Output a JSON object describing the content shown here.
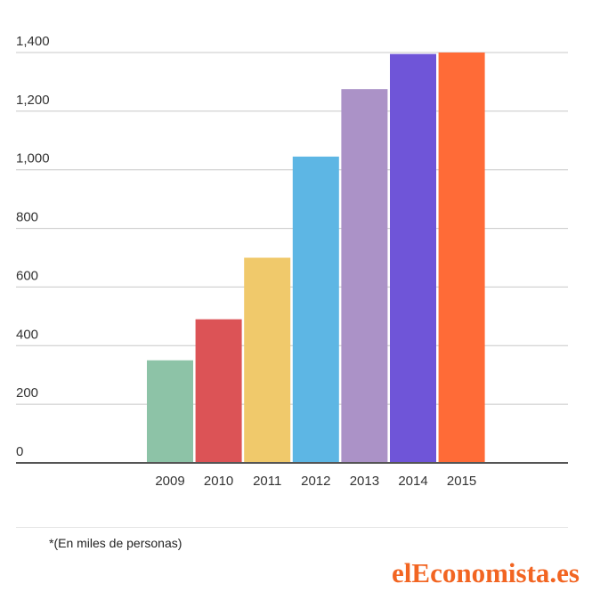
{
  "chart_data": {
    "type": "bar",
    "categories": [
      "2009",
      "2010",
      "2011",
      "2012",
      "2013",
      "2014",
      "2015"
    ],
    "values": [
      350,
      490,
      700,
      1045,
      1275,
      1395,
      1400
    ],
    "colors": [
      "#8dc3a7",
      "#dc5356",
      "#f0c96b",
      "#5db6e4",
      "#ab92c7",
      "#6f55d8",
      "#ff6b37"
    ],
    "ylim": [
      0,
      1400
    ],
    "yticks": [
      0,
      200,
      400,
      600,
      800,
      1000,
      1200,
      1400
    ],
    "ytick_labels": [
      "0",
      "200",
      "400",
      "600",
      "800",
      "1,000",
      "1,200",
      "1,400"
    ],
    "grid": true
  },
  "footnote": "*(En miles de personas)",
  "logo": "elEconomista.es"
}
